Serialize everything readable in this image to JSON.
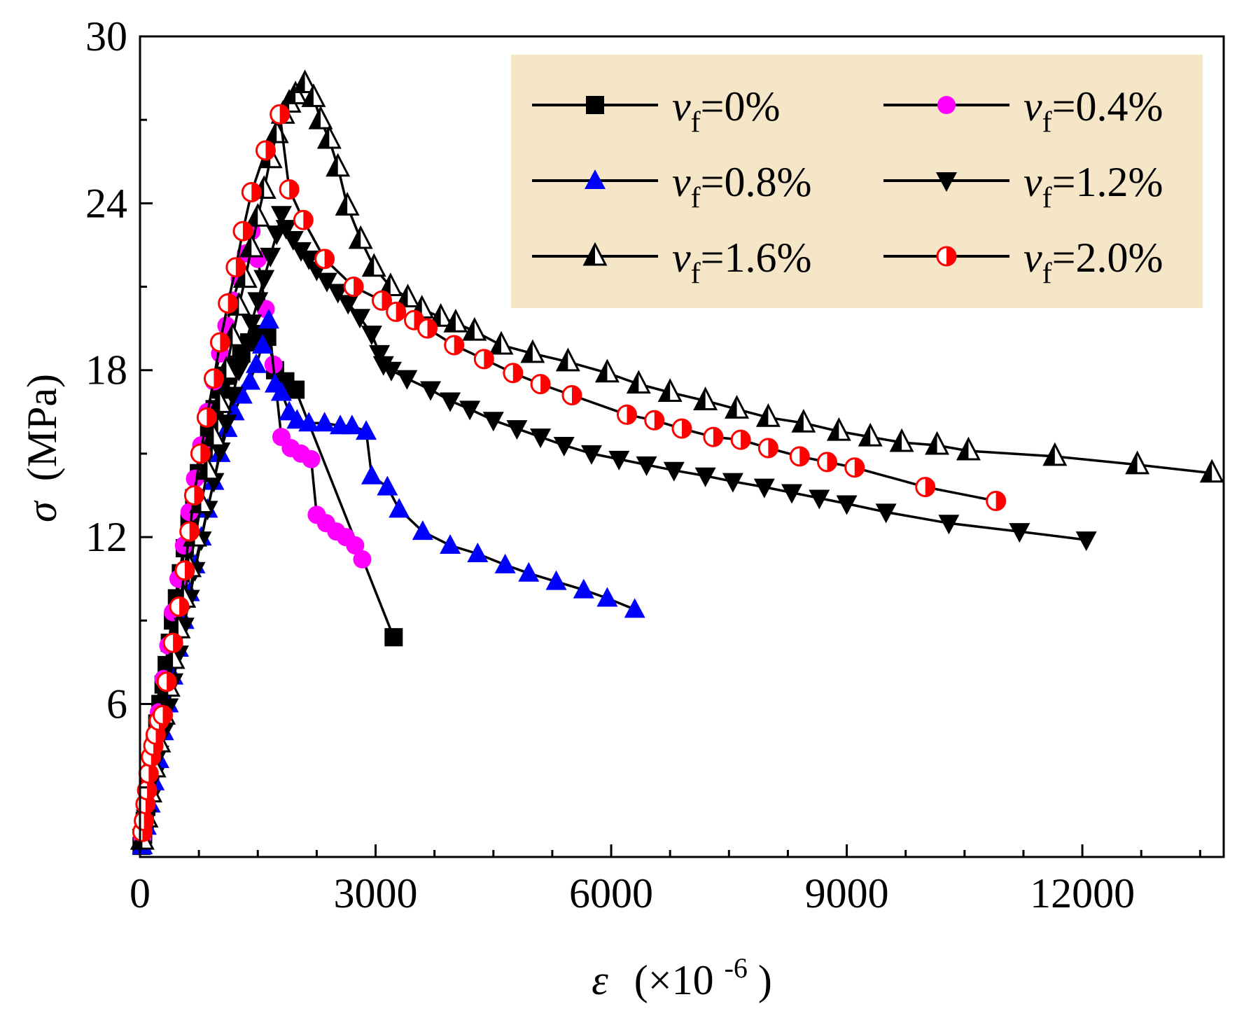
{
  "chart_data": {
    "type": "line",
    "title": "",
    "xlabel_symbol": "ε",
    "xlabel_unit": "(×10",
    "xlabel_exp": "-6",
    "xlabel_close": ")",
    "ylabel_symbol": "σ",
    "ylabel_unit": "(MPa)",
    "xlim": [
      0,
      13800
    ],
    "ylim": [
      0.5,
      30
    ],
    "xticks": [
      0,
      3000,
      6000,
      9000,
      12000
    ],
    "yticks": [
      6,
      12,
      18,
      24,
      30
    ],
    "grid": false,
    "legend_position": "top-right",
    "legend_background": "#f5e6c8",
    "series": [
      {
        "name": "vf=0%",
        "label_main": "v",
        "label_sub": "f",
        "label_value": "=0%",
        "marker": "square",
        "color": "#000000",
        "points": [
          [
            20,
            0.9
          ],
          [
            40,
            1.3
          ],
          [
            60,
            1.8
          ],
          [
            80,
            2.3
          ],
          [
            100,
            2.8
          ],
          [
            130,
            3.4
          ],
          [
            160,
            4.0
          ],
          [
            190,
            4.6
          ],
          [
            220,
            5.3
          ],
          [
            260,
            6.0
          ],
          [
            300,
            6.7
          ],
          [
            340,
            7.4
          ],
          [
            380,
            8.2
          ],
          [
            420,
            9.0
          ],
          [
            470,
            9.8
          ],
          [
            520,
            10.7
          ],
          [
            570,
            11.6
          ],
          [
            630,
            12.5
          ],
          [
            690,
            13.4
          ],
          [
            750,
            14.3
          ],
          [
            810,
            15.1
          ],
          [
            880,
            15.9
          ],
          [
            950,
            16.6
          ],
          [
            1030,
            17.3
          ],
          [
            1110,
            17.8
          ],
          [
            1200,
            18.2
          ],
          [
            1290,
            18.6
          ],
          [
            1390,
            19.0
          ],
          [
            1500,
            19.3
          ],
          [
            1620,
            19.2
          ],
          [
            1720,
            18.0
          ],
          [
            1850,
            17.6
          ],
          [
            1980,
            17.3
          ],
          [
            3230,
            8.4
          ]
        ]
      },
      {
        "name": "vf=0.4%",
        "label_main": "v",
        "label_sub": "f",
        "label_value": "=0.4%",
        "marker": "circle",
        "color": "#ff00ff",
        "points": [
          [
            30,
            1.2
          ],
          [
            80,
            2.3
          ],
          [
            130,
            3.4
          ],
          [
            180,
            4.5
          ],
          [
            240,
            5.7
          ],
          [
            300,
            6.9
          ],
          [
            360,
            8.1
          ],
          [
            420,
            9.3
          ],
          [
            490,
            10.5
          ],
          [
            560,
            11.7
          ],
          [
            630,
            12.9
          ],
          [
            700,
            14.1
          ],
          [
            780,
            15.3
          ],
          [
            860,
            16.5
          ],
          [
            940,
            17.6
          ],
          [
            1020,
            18.6
          ],
          [
            1100,
            19.6
          ],
          [
            1180,
            20.5
          ],
          [
            1270,
            21.3
          ],
          [
            1350,
            22.2
          ],
          [
            1420,
            23.0
          ],
          [
            1500,
            22.0
          ],
          [
            1600,
            20.2
          ],
          [
            1700,
            18.2
          ],
          [
            1800,
            15.6
          ],
          [
            1920,
            15.2
          ],
          [
            2050,
            15.0
          ],
          [
            2180,
            14.8
          ],
          [
            2250,
            12.8
          ],
          [
            2370,
            12.5
          ],
          [
            2500,
            12.2
          ],
          [
            2620,
            12.0
          ],
          [
            2740,
            11.7
          ],
          [
            2830,
            11.2
          ]
        ]
      },
      {
        "name": "vf=0.8%",
        "label_main": "v",
        "label_sub": "f",
        "label_value": "=0.8%",
        "marker": "triangle-up",
        "color": "#0000ff",
        "points": [
          [
            30,
            0.9
          ],
          [
            80,
            1.6
          ],
          [
            130,
            2.4
          ],
          [
            180,
            3.2
          ],
          [
            240,
            4.0
          ],
          [
            300,
            5.0
          ],
          [
            360,
            6.0
          ],
          [
            420,
            7.0
          ],
          [
            490,
            8.0
          ],
          [
            560,
            9.0
          ],
          [
            630,
            10.0
          ],
          [
            700,
            11.0
          ],
          [
            780,
            12.0
          ],
          [
            860,
            13.0
          ],
          [
            940,
            14.0
          ],
          [
            1020,
            15.0
          ],
          [
            1110,
            15.9
          ],
          [
            1200,
            16.5
          ],
          [
            1300,
            17.1
          ],
          [
            1400,
            17.6
          ],
          [
            1480,
            18.2
          ],
          [
            1560,
            18.9
          ],
          [
            1640,
            19.8
          ],
          [
            1720,
            17.5
          ],
          [
            1800,
            17.2
          ],
          [
            1900,
            16.5
          ],
          [
            2000,
            16.2
          ],
          [
            2150,
            16.1
          ],
          [
            2350,
            16.1
          ],
          [
            2550,
            16.0
          ],
          [
            2700,
            16.0
          ],
          [
            2880,
            15.8
          ],
          [
            2950,
            14.2
          ],
          [
            3150,
            13.8
          ],
          [
            3300,
            13.0
          ],
          [
            3600,
            12.2
          ],
          [
            3950,
            11.7
          ],
          [
            4300,
            11.4
          ],
          [
            4650,
            11.0
          ],
          [
            4950,
            10.7
          ],
          [
            5300,
            10.4
          ],
          [
            5650,
            10.1
          ],
          [
            5950,
            9.8
          ],
          [
            6300,
            9.4
          ]
        ]
      },
      {
        "name": "vf=1.2%",
        "label_main": "v",
        "label_sub": "f",
        "label_value": "=1.2%",
        "marker": "triangle-down",
        "color": "#000000",
        "points": [
          [
            30,
            1.2
          ],
          [
            80,
            1.9
          ],
          [
            130,
            2.6
          ],
          [
            180,
            3.4
          ],
          [
            240,
            4.2
          ],
          [
            300,
            5.0
          ],
          [
            360,
            5.9
          ],
          [
            420,
            6.8
          ],
          [
            490,
            7.8
          ],
          [
            560,
            8.8
          ],
          [
            630,
            9.8
          ],
          [
            700,
            10.8
          ],
          [
            780,
            11.9
          ],
          [
            860,
            13.0
          ],
          [
            940,
            14.0
          ],
          [
            1020,
            15.1
          ],
          [
            1100,
            16.1
          ],
          [
            1180,
            17.1
          ],
          [
            1260,
            18.0
          ],
          [
            1340,
            18.9
          ],
          [
            1420,
            19.7
          ],
          [
            1500,
            20.5
          ],
          [
            1580,
            21.3
          ],
          [
            1660,
            22.1
          ],
          [
            1740,
            22.9
          ],
          [
            1800,
            23.6
          ],
          [
            1860,
            23.1
          ],
          [
            1950,
            22.7
          ],
          [
            2050,
            22.3
          ],
          [
            2150,
            22.0
          ],
          [
            2250,
            21.6
          ],
          [
            2380,
            21.2
          ],
          [
            2520,
            20.8
          ],
          [
            2650,
            20.4
          ],
          [
            2800,
            19.9
          ],
          [
            2950,
            19.3
          ],
          [
            3050,
            18.6
          ],
          [
            3100,
            18.2
          ],
          [
            3200,
            18.0
          ],
          [
            3400,
            17.7
          ],
          [
            3700,
            17.3
          ],
          [
            3950,
            16.9
          ],
          [
            4200,
            16.6
          ],
          [
            4500,
            16.2
          ],
          [
            4800,
            15.9
          ],
          [
            5100,
            15.6
          ],
          [
            5400,
            15.3
          ],
          [
            5750,
            15.0
          ],
          [
            6100,
            14.8
          ],
          [
            6450,
            14.6
          ],
          [
            6800,
            14.4
          ],
          [
            7200,
            14.2
          ],
          [
            7550,
            14.0
          ],
          [
            7950,
            13.8
          ],
          [
            8300,
            13.6
          ],
          [
            8650,
            13.4
          ],
          [
            9000,
            13.2
          ],
          [
            9500,
            12.9
          ],
          [
            10300,
            12.5
          ],
          [
            11200,
            12.2
          ],
          [
            12050,
            11.9
          ]
        ]
      },
      {
        "name": "vf=1.6%",
        "label_main": "v",
        "label_sub": "f",
        "label_value": "=1.6%",
        "marker": "triangle-open",
        "color": "#000000",
        "points": [
          [
            30,
            1.1
          ],
          [
            80,
            1.9
          ],
          [
            130,
            2.8
          ],
          [
            180,
            3.7
          ],
          [
            240,
            4.6
          ],
          [
            300,
            5.6
          ],
          [
            360,
            6.6
          ],
          [
            420,
            7.6
          ],
          [
            490,
            8.7
          ],
          [
            560,
            9.8
          ],
          [
            630,
            10.9
          ],
          [
            700,
            12.0
          ],
          [
            780,
            13.2
          ],
          [
            860,
            14.4
          ],
          [
            940,
            15.6
          ],
          [
            1020,
            16.8
          ],
          [
            1100,
            18.0
          ],
          [
            1180,
            19.2
          ],
          [
            1260,
            20.3
          ],
          [
            1340,
            21.3
          ],
          [
            1420,
            22.4
          ],
          [
            1500,
            23.5
          ],
          [
            1580,
            24.5
          ],
          [
            1660,
            25.6
          ],
          [
            1740,
            26.5
          ],
          [
            1820,
            27.2
          ],
          [
            1900,
            27.6
          ],
          [
            1980,
            27.9
          ],
          [
            2100,
            28.3
          ],
          [
            2210,
            27.8
          ],
          [
            2300,
            27.0
          ],
          [
            2410,
            26.3
          ],
          [
            2520,
            25.3
          ],
          [
            2640,
            23.9
          ],
          [
            2810,
            22.7
          ],
          [
            2980,
            21.7
          ],
          [
            3190,
            21.0
          ],
          [
            3410,
            20.6
          ],
          [
            3590,
            20.2
          ],
          [
            3830,
            19.9
          ],
          [
            4020,
            19.7
          ],
          [
            4260,
            19.4
          ],
          [
            4600,
            18.9
          ],
          [
            5000,
            18.6
          ],
          [
            5450,
            18.3
          ],
          [
            5950,
            17.9
          ],
          [
            6350,
            17.5
          ],
          [
            6750,
            17.2
          ],
          [
            7200,
            16.9
          ],
          [
            7600,
            16.6
          ],
          [
            8000,
            16.3
          ],
          [
            8450,
            16.1
          ],
          [
            8900,
            15.8
          ],
          [
            9300,
            15.6
          ],
          [
            9700,
            15.4
          ],
          [
            10150,
            15.3
          ],
          [
            10550,
            15.1
          ],
          [
            11650,
            14.9
          ],
          [
            12700,
            14.6
          ],
          [
            13650,
            14.3
          ]
        ]
      },
      {
        "name": "vf=2.0%",
        "label_main": "v",
        "label_sub": "f",
        "label_value": "=2.0%",
        "marker": "circle-half",
        "color": "#ff0000",
        "points": [
          [
            30,
            1.4
          ],
          [
            50,
            1.8
          ],
          [
            70,
            2.4
          ],
          [
            90,
            2.9
          ],
          [
            110,
            3.5
          ],
          [
            140,
            4.1
          ],
          [
            170,
            4.5
          ],
          [
            200,
            4.9
          ],
          [
            240,
            5.4
          ],
          [
            290,
            5.6
          ],
          [
            340,
            6.8
          ],
          [
            420,
            8.2
          ],
          [
            500,
            9.5
          ],
          [
            570,
            10.8
          ],
          [
            630,
            12.2
          ],
          [
            690,
            13.5
          ],
          [
            770,
            15.0
          ],
          [
            850,
            16.3
          ],
          [
            940,
            17.7
          ],
          [
            1020,
            19.0
          ],
          [
            1120,
            20.4
          ],
          [
            1220,
            21.7
          ],
          [
            1310,
            23.0
          ],
          [
            1420,
            24.4
          ],
          [
            1600,
            25.9
          ],
          [
            1780,
            27.2
          ],
          [
            1900,
            24.5
          ],
          [
            2080,
            23.4
          ],
          [
            2350,
            22.0
          ],
          [
            2720,
            21.0
          ],
          [
            3080,
            20.5
          ],
          [
            3260,
            20.1
          ],
          [
            3490,
            19.8
          ],
          [
            3660,
            19.5
          ],
          [
            4000,
            18.9
          ],
          [
            4380,
            18.4
          ],
          [
            4750,
            17.9
          ],
          [
            5100,
            17.5
          ],
          [
            5500,
            17.1
          ],
          [
            6200,
            16.4
          ],
          [
            6550,
            16.2
          ],
          [
            6900,
            15.9
          ],
          [
            7300,
            15.6
          ],
          [
            7650,
            15.5
          ],
          [
            8000,
            15.2
          ],
          [
            8400,
            14.9
          ],
          [
            8750,
            14.7
          ],
          [
            9100,
            14.5
          ],
          [
            10000,
            13.8
          ],
          [
            10900,
            13.3
          ]
        ]
      }
    ]
  }
}
